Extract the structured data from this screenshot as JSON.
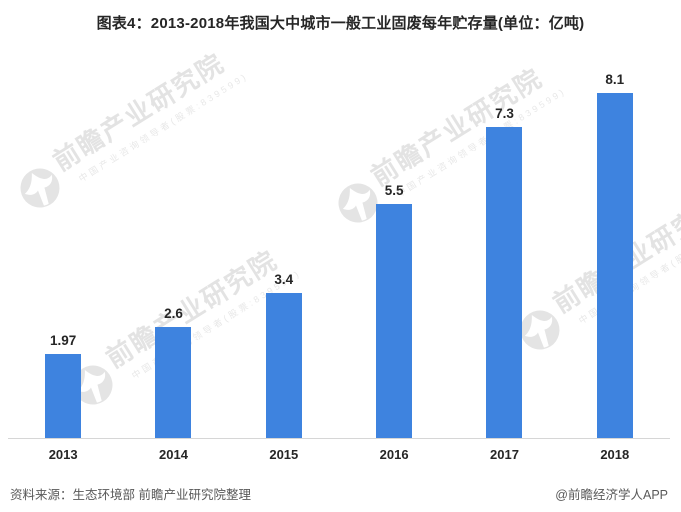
{
  "title": "图表4：2013-2018年我国大中城市一般工业固废每年贮存量(单位：亿吨)",
  "chart_data": {
    "type": "bar",
    "title": "图表4：2013-2018年我国大中城市一般工业固废每年贮存量(单位：亿吨)",
    "categories": [
      "2013",
      "2014",
      "2015",
      "2016",
      "2017",
      "2018"
    ],
    "values": [
      1.97,
      2.6,
      3.4,
      5.5,
      7.3,
      8.1
    ],
    "unit": "亿吨",
    "xlabel": "",
    "ylabel": "",
    "ylim": [
      0,
      9
    ],
    "grid": false,
    "legend": false,
    "value_labels": true,
    "bar_color": "#3E83DF",
    "label_color": "#262626",
    "axis_line_color": "#d6d6d6"
  },
  "watermark": {
    "icon": "qianzhan-logo",
    "text_large": "前瞻产业研究院",
    "text_small": "中国产业咨询领导者(股票:839599)",
    "color_large": "#e3e3e3",
    "color_small": "#e8e8e8"
  },
  "footer": {
    "source": "资料来源：生态环境部 前瞻产业研究院整理",
    "credit": "@前瞻经济学人APP"
  }
}
